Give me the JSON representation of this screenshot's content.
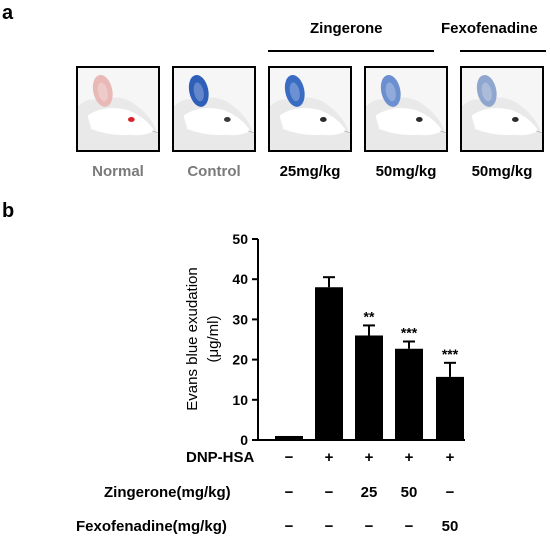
{
  "panel_a": {
    "label": "a",
    "groups": [
      {
        "name": "Zingerone"
      },
      {
        "name": "Fexofenadine"
      }
    ],
    "photos": [
      {
        "caption": "Normal",
        "ear_color": "#e8b9b6",
        "eye_color": "#d9232a",
        "caption_color": "grey"
      },
      {
        "caption": "Control",
        "ear_color": "#2f5fb8",
        "eye_color": "#3b3b3b",
        "caption_color": "grey"
      },
      {
        "caption": "25mg/kg",
        "ear_color": "#3a6cc4",
        "eye_color": "#2b2b2b",
        "caption_color": "black"
      },
      {
        "caption": "50mg/kg",
        "ear_color": "#6b8fcf",
        "eye_color": "#2b2b2b",
        "caption_color": "black"
      },
      {
        "caption": "50mg/kg",
        "ear_color": "#8fa6cf",
        "eye_color": "#2b2b2b",
        "caption_color": "black"
      }
    ]
  },
  "panel_b": {
    "label": "b",
    "rows": [
      {
        "label": "DNP-HSA",
        "values": [
          "−",
          "+",
          "+",
          "+",
          "+"
        ]
      },
      {
        "label": "Zingerone(mg/kg)",
        "values": [
          "−",
          "−",
          "25",
          "50",
          "−"
        ]
      },
      {
        "label": "Fexofenadine(mg/kg)",
        "values": [
          "−",
          "−",
          "−",
          "−",
          "50"
        ]
      }
    ]
  },
  "chart_data": {
    "type": "bar",
    "ylabel_line1": "Evans blue exudation",
    "ylabel_line2": "(μg/ml)",
    "ylim": [
      0,
      50
    ],
    "yticks": [
      0,
      10,
      20,
      30,
      40,
      50
    ],
    "values": [
      1,
      38,
      26,
      22.7,
      15.7
    ],
    "errors": [
      0.2,
      2.5,
      2.5,
      1.8,
      3.5
    ],
    "annotations": [
      "",
      "",
      "**",
      "***",
      "***"
    ],
    "bar_color": "#000000"
  }
}
